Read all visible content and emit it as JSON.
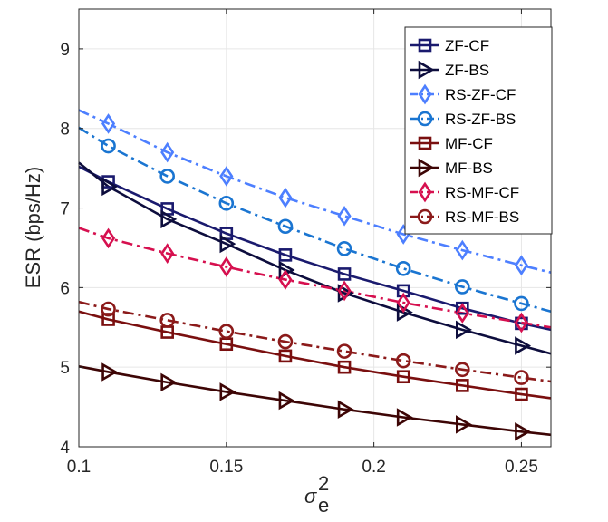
{
  "chart_data": {
    "type": "line",
    "xlabel": "σ",
    "xlabel_sub": "e",
    "xlabel_sup": "2",
    "ylabel": "ESR (bps/Hz)",
    "xlim": [
      0.1,
      0.26
    ],
    "ylim": [
      4,
      9.5
    ],
    "xticks": [
      0.1,
      0.15,
      0.2,
      0.25
    ],
    "xtick_labels": [
      "0.1",
      "0.15",
      "0.2",
      "0.25"
    ],
    "yticks": [
      4,
      5,
      6,
      7,
      8,
      9
    ],
    "ytick_labels": [
      "4",
      "5",
      "6",
      "7",
      "8",
      "9"
    ],
    "grid": true,
    "legend_position": "top-right",
    "line_x": [
      0.1,
      0.11,
      0.13,
      0.15,
      0.17,
      0.19,
      0.21,
      0.23,
      0.25,
      0.26
    ],
    "marker_x": [
      0.11,
      0.13,
      0.15,
      0.17,
      0.19,
      0.21,
      0.23,
      0.25
    ],
    "series": [
      {
        "name": "ZF-CF",
        "color": "#1a1a6e",
        "dash": "solid",
        "marker": "square",
        "values": [
          7.52,
          7.33,
          6.99,
          6.68,
          6.41,
          6.17,
          5.96,
          5.74,
          5.55,
          5.47
        ]
      },
      {
        "name": "ZF-BS",
        "color": "#0d0d3d",
        "dash": "solid",
        "marker": "triangle-right",
        "values": [
          7.57,
          7.27,
          6.86,
          6.55,
          6.22,
          5.93,
          5.69,
          5.47,
          5.27,
          5.17
        ]
      },
      {
        "name": "RS-ZF-CF",
        "color": "#4d7fff",
        "dash": "dashdot",
        "marker": "diamond",
        "values": [
          8.23,
          8.06,
          7.7,
          7.4,
          7.13,
          6.9,
          6.67,
          6.47,
          6.28,
          6.19
        ]
      },
      {
        "name": "RS-ZF-BS",
        "color": "#1a75d1",
        "dash": "dashdot",
        "marker": "circle",
        "values": [
          8.01,
          7.78,
          7.4,
          7.06,
          6.77,
          6.49,
          6.24,
          6.01,
          5.8,
          5.7
        ]
      },
      {
        "name": "MF-CF",
        "color": "#7a0f0f",
        "dash": "solid",
        "marker": "square",
        "values": [
          5.7,
          5.6,
          5.44,
          5.29,
          5.14,
          5.0,
          4.88,
          4.77,
          4.66,
          4.61
        ]
      },
      {
        "name": "MF-BS",
        "color": "#3d0505",
        "dash": "solid",
        "marker": "triangle-right",
        "values": [
          5.01,
          4.94,
          4.81,
          4.69,
          4.58,
          4.47,
          4.37,
          4.28,
          4.19,
          4.15
        ]
      },
      {
        "name": "RS-MF-CF",
        "color": "#d6104f",
        "dash": "dashdot",
        "marker": "diamond",
        "values": [
          6.75,
          6.62,
          6.43,
          6.26,
          6.1,
          5.96,
          5.81,
          5.68,
          5.56,
          5.5
        ]
      },
      {
        "name": "RS-MF-BS",
        "color": "#8b1a1a",
        "dash": "dashdot",
        "marker": "circle",
        "values": [
          5.82,
          5.73,
          5.59,
          5.45,
          5.32,
          5.2,
          5.08,
          4.97,
          4.87,
          4.82
        ]
      }
    ]
  }
}
